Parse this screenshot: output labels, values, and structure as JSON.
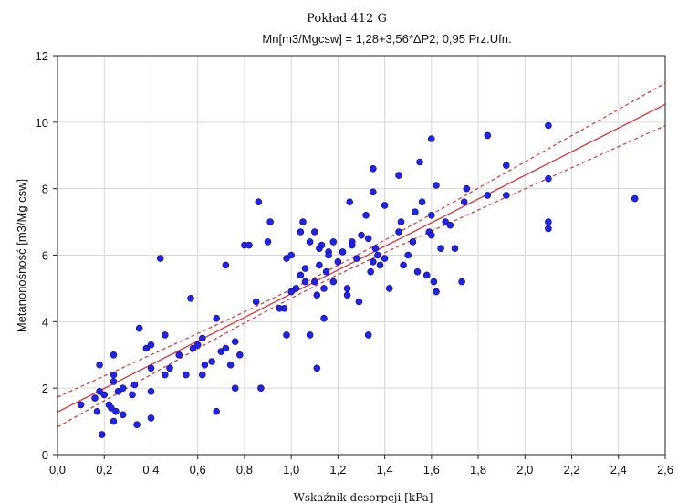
{
  "chart_data": {
    "type": "scatter",
    "title": "Pokład 412 G",
    "subtitle": "Mn[m3/Mgcsw] = 1,28+3,56*ΔP2; 0,95 Prz.Ufn.",
    "xlabel": "Wskaźnik desorpcji  [kPa]",
    "ylabel": "Metanonośność [m3/Mg csw]",
    "xlim": [
      0,
      2.6
    ],
    "ylim": [
      0,
      12
    ],
    "x_ticks": [
      "0,0",
      "0,2",
      "0,4",
      "0,6",
      "0,8",
      "1,0",
      "1,2",
      "1,4",
      "1,6",
      "1,8",
      "2,0",
      "2,2",
      "2,4",
      "2,6"
    ],
    "y_ticks": [
      "0",
      "2",
      "4",
      "6",
      "8",
      "10",
      "12"
    ],
    "grid": true,
    "regression": {
      "intercept": 1.28,
      "slope": 3.56,
      "confidence": 0.95,
      "ci_half_width_at_min": 0.45,
      "ci_half_width_at_mean": 0.13,
      "x_mean": 1.06
    },
    "colors": {
      "points": "#2424e0",
      "point_edge": "#0a0a9a",
      "line": "#d94040",
      "grid": "#d6d6d6"
    },
    "points": [
      [
        0.1,
        1.5
      ],
      [
        0.16,
        1.7
      ],
      [
        0.17,
        1.3
      ],
      [
        0.19,
        0.6
      ],
      [
        0.18,
        1.9
      ],
      [
        0.2,
        1.8
      ],
      [
        0.18,
        2.7
      ],
      [
        0.22,
        1.5
      ],
      [
        0.23,
        1.4
      ],
      [
        0.24,
        2.2
      ],
      [
        0.24,
        2.4
      ],
      [
        0.24,
        1.0
      ],
      [
        0.25,
        1.3
      ],
      [
        0.26,
        1.9
      ],
      [
        0.24,
        3.0
      ],
      [
        0.28,
        2.0
      ],
      [
        0.28,
        1.2
      ],
      [
        0.32,
        1.8
      ],
      [
        0.33,
        2.1
      ],
      [
        0.34,
        0.9
      ],
      [
        0.35,
        3.8
      ],
      [
        0.38,
        3.2
      ],
      [
        0.4,
        3.3
      ],
      [
        0.4,
        2.6
      ],
      [
        0.4,
        1.9
      ],
      [
        0.4,
        1.1
      ],
      [
        0.44,
        5.9
      ],
      [
        0.46,
        3.6
      ],
      [
        0.46,
        2.4
      ],
      [
        0.48,
        2.6
      ],
      [
        0.52,
        3.0
      ],
      [
        0.55,
        2.4
      ],
      [
        0.57,
        4.7
      ],
      [
        0.58,
        3.2
      ],
      [
        0.6,
        3.3
      ],
      [
        0.62,
        3.5
      ],
      [
        0.62,
        2.4
      ],
      [
        0.63,
        2.7
      ],
      [
        0.66,
        2.8
      ],
      [
        0.68,
        4.1
      ],
      [
        0.68,
        1.3
      ],
      [
        0.7,
        3.1
      ],
      [
        0.72,
        3.2
      ],
      [
        0.72,
        5.7
      ],
      [
        0.74,
        2.7
      ],
      [
        0.76,
        3.4
      ],
      [
        0.76,
        2.0
      ],
      [
        0.78,
        3.0
      ],
      [
        0.8,
        6.3
      ],
      [
        0.82,
        6.3
      ],
      [
        0.85,
        4.6
      ],
      [
        0.86,
        7.6
      ],
      [
        0.87,
        2.0
      ],
      [
        0.9,
        6.4
      ],
      [
        0.91,
        7.0
      ],
      [
        0.95,
        4.4
      ],
      [
        0.97,
        4.4
      ],
      [
        0.98,
        3.6
      ],
      [
        0.98,
        5.9
      ],
      [
        1.0,
        6.0
      ],
      [
        1.0,
        4.9
      ],
      [
        1.02,
        5.0
      ],
      [
        1.04,
        5.4
      ],
      [
        1.04,
        6.7
      ],
      [
        1.05,
        7.0
      ],
      [
        1.06,
        5.6
      ],
      [
        1.06,
        5.2
      ],
      [
        1.08,
        6.4
      ],
      [
        1.08,
        3.6
      ],
      [
        1.1,
        5.2
      ],
      [
        1.1,
        6.7
      ],
      [
        1.11,
        4.8
      ],
      [
        1.11,
        2.6
      ],
      [
        1.12,
        5.7
      ],
      [
        1.12,
        6.2
      ],
      [
        1.13,
        6.3
      ],
      [
        1.14,
        5.0
      ],
      [
        1.14,
        4.1
      ],
      [
        1.15,
        5.5
      ],
      [
        1.16,
        6.1
      ],
      [
        1.16,
        6.0
      ],
      [
        1.18,
        5.2
      ],
      [
        1.18,
        6.4
      ],
      [
        1.2,
        5.8
      ],
      [
        1.22,
        6.1
      ],
      [
        1.24,
        5.0
      ],
      [
        1.24,
        4.8
      ],
      [
        1.25,
        7.6
      ],
      [
        1.26,
        6.4
      ],
      [
        1.26,
        6.3
      ],
      [
        1.28,
        5.9
      ],
      [
        1.29,
        4.6
      ],
      [
        1.3,
        6.6
      ],
      [
        1.32,
        7.2
      ],
      [
        1.33,
        6.5
      ],
      [
        1.33,
        3.6
      ],
      [
        1.34,
        5.5
      ],
      [
        1.35,
        8.6
      ],
      [
        1.35,
        7.9
      ],
      [
        1.35,
        5.8
      ],
      [
        1.36,
        6.2
      ],
      [
        1.37,
        6.0
      ],
      [
        1.38,
        5.7
      ],
      [
        1.4,
        5.9
      ],
      [
        1.4,
        7.5
      ],
      [
        1.42,
        5.0
      ],
      [
        1.46,
        6.7
      ],
      [
        1.46,
        8.4
      ],
      [
        1.47,
        7.0
      ],
      [
        1.48,
        5.7
      ],
      [
        1.5,
        6.0
      ],
      [
        1.52,
        6.4
      ],
      [
        1.53,
        7.3
      ],
      [
        1.54,
        5.5
      ],
      [
        1.55,
        8.8
      ],
      [
        1.56,
        7.6
      ],
      [
        1.58,
        5.4
      ],
      [
        1.59,
        6.7
      ],
      [
        1.6,
        6.6
      ],
      [
        1.6,
        9.5
      ],
      [
        1.6,
        7.2
      ],
      [
        1.61,
        5.2
      ],
      [
        1.62,
        4.9
      ],
      [
        1.62,
        8.1
      ],
      [
        1.64,
        6.2
      ],
      [
        1.66,
        7.0
      ],
      [
        1.68,
        6.9
      ],
      [
        1.7,
        6.2
      ],
      [
        1.73,
        5.2
      ],
      [
        1.74,
        7.6
      ],
      [
        1.75,
        8.0
      ],
      [
        1.84,
        9.6
      ],
      [
        1.84,
        7.8
      ],
      [
        1.92,
        8.7
      ],
      [
        1.92,
        7.8
      ],
      [
        2.1,
        9.9
      ],
      [
        2.1,
        8.3
      ],
      [
        2.1,
        7.0
      ],
      [
        2.1,
        6.8
      ],
      [
        2.47,
        7.7
      ]
    ]
  }
}
